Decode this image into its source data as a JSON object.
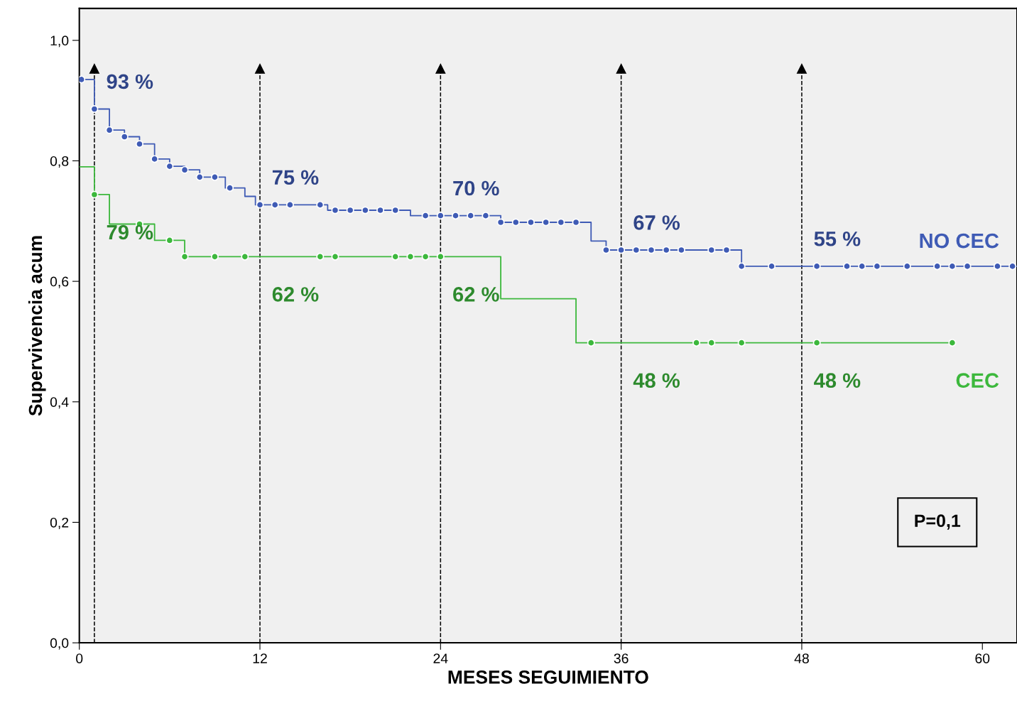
{
  "chart_data": {
    "type": "step",
    "xlabel": "MESES SEGUIMIENTO",
    "ylabel": "Supervivencia acum",
    "xlim": [
      0,
      62.3
    ],
    "ylim": [
      0,
      1.053
    ],
    "xticks": [
      0,
      12,
      24,
      36,
      48,
      60
    ],
    "yticks": [
      {
        "value": 0,
        "label": "0,0"
      },
      {
        "value": 0.2,
        "label": "0,2"
      },
      {
        "value": 0.4,
        "label": "0,4"
      },
      {
        "value": 0.6,
        "label": "0,6"
      },
      {
        "value": 0.8,
        "label": "0,8"
      },
      {
        "value": 1.0,
        "label": "1,0"
      }
    ],
    "grid": false,
    "legend": false,
    "series": [
      {
        "name": "NO CEC",
        "color": "#3f5bb5",
        "x": [
          0,
          1,
          2,
          3,
          4,
          5,
          6,
          7,
          8,
          9.7,
          11,
          11.7,
          16.5,
          22,
          28,
          34,
          35,
          44,
          62.3
        ],
        "values": [
          0.935,
          0.886,
          0.851,
          0.84,
          0.828,
          0.803,
          0.791,
          0.785,
          0.773,
          0.755,
          0.741,
          0.727,
          0.718,
          0.709,
          0.698,
          0.667,
          0.652,
          0.625,
          0.625
        ]
      },
      {
        "name": "CEC",
        "color": "#3cb83c",
        "x": [
          0,
          1,
          2,
          5,
          7,
          28,
          33,
          58
        ],
        "values": [
          0.79,
          0.744,
          0.695,
          0.668,
          0.641,
          0.571,
          0.498,
          0.498
        ]
      },
      {
        "type": "scatter",
        "color": "#3f5bb5",
        "marker": "circle",
        "x": [
          0.14,
          1,
          2,
          3,
          4,
          5,
          6,
          7,
          8,
          9,
          10,
          12,
          13,
          14,
          16,
          17,
          18,
          19,
          20,
          21,
          23,
          24,
          25,
          26,
          27,
          28,
          29,
          30,
          31,
          32,
          33,
          35,
          36,
          37,
          38,
          39,
          40,
          42,
          43,
          44,
          46,
          49,
          51,
          52,
          53,
          55,
          57,
          58,
          59,
          61,
          62
        ],
        "values": [
          0.935,
          0.886,
          0.851,
          0.84,
          0.828,
          0.803,
          0.791,
          0.785,
          0.773,
          0.773,
          0.755,
          0.727,
          0.727,
          0.727,
          0.727,
          0.718,
          0.718,
          0.718,
          0.718,
          0.718,
          0.709,
          0.709,
          0.709,
          0.709,
          0.709,
          0.698,
          0.698,
          0.698,
          0.698,
          0.698,
          0.698,
          0.652,
          0.652,
          0.652,
          0.652,
          0.652,
          0.652,
          0.652,
          0.652,
          0.625,
          0.625,
          0.625,
          0.625,
          0.625,
          0.625,
          0.625,
          0.625,
          0.625,
          0.625,
          0.625,
          0.625
        ]
      },
      {
        "type": "scatter",
        "color": "#3cb83c",
        "marker": "circle",
        "x": [
          1,
          4,
          6,
          7,
          9,
          11,
          16,
          17,
          21,
          22,
          23,
          24,
          34,
          41,
          42,
          44,
          49,
          58
        ],
        "values": [
          0.744,
          0.695,
          0.668,
          0.641,
          0.641,
          0.641,
          0.641,
          0.641,
          0.641,
          0.641,
          0.641,
          0.641,
          0.498,
          0.498,
          0.498,
          0.498,
          0.498,
          0.498
        ]
      }
    ],
    "ref_lines": [
      {
        "axis": "x",
        "value": 1,
        "color": "#000000",
        "line_style": "dashed"
      },
      {
        "axis": "x",
        "value": 12,
        "color": "#000000",
        "line_style": "dashed"
      },
      {
        "axis": "x",
        "value": 24,
        "color": "#000000",
        "line_style": "dashed"
      },
      {
        "axis": "x",
        "value": 36,
        "color": "#000000",
        "line_style": "dashed"
      },
      {
        "axis": "x",
        "value": 48,
        "color": "#000000",
        "line_style": "dashed"
      }
    ],
    "annotations": [
      {
        "text": "93 %",
        "x": 1,
        "y": 0.886
      },
      {
        "text": "75 %",
        "x": 12,
        "y": 0.727
      },
      {
        "text": "70 %",
        "x": 24,
        "y": 0.709
      },
      {
        "text": "67 %",
        "x": 36,
        "y": 0.652
      },
      {
        "text": "55 %",
        "x": 48,
        "y": 0.625
      },
      {
        "text": "79 %",
        "x": 1,
        "y": 0.744
      },
      {
        "text": "62 %",
        "x": 12,
        "y": 0.641
      },
      {
        "text": "62 %",
        "x": 24,
        "y": 0.641
      },
      {
        "text": "48 %",
        "x": 36,
        "y": 0.498
      },
      {
        "text": "48 %",
        "x": 48,
        "y": 0.498
      },
      "P=0,1"
    ]
  }
}
